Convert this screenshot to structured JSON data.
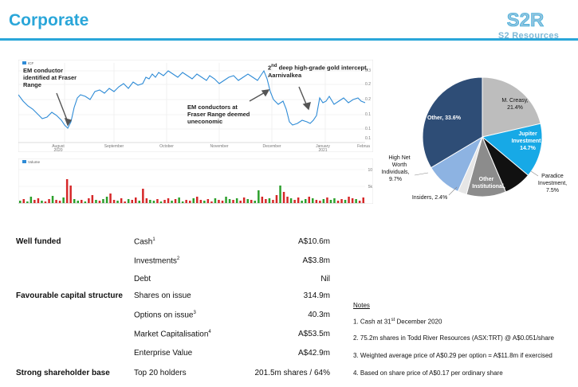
{
  "slide": {
    "title": "Corporate"
  },
  "logo": {
    "mark": "S2R",
    "text": "S2 Resources"
  },
  "price_chart": {
    "legend": "ICF",
    "x_labels": [
      "August\n2020",
      "September",
      "October",
      "November",
      "December",
      "January\n2021",
      "Februa"
    ],
    "y_labels": [
      "0.3",
      "0.2",
      "0.2",
      "0.1",
      "0.1",
      "0.1"
    ],
    "annotations": {
      "em_fraser": "EM conductor identified at Fraser Range",
      "aarnivalkea_sup": "nd",
      "aarnivalkea_pre": "2",
      "aarnivalkea": "deep high-grade gold intercept, Aarnivalkea",
      "em_uneconomic": "EM conductors at Fraser Range deemed uneconomic"
    }
  },
  "volume_chart": {
    "legend": "Volume",
    "y_labels": [
      "10",
      "5k"
    ]
  },
  "chart_data": {
    "type": "pie",
    "title": "",
    "slices": [
      {
        "label": "M. Creasy,",
        "value": 21.4,
        "color": "#bdbdbd",
        "text": "21.4%"
      },
      {
        "label": "Jupiter Investment ,",
        "value": 14.7,
        "color": "#17a9e6",
        "text": "14.7%"
      },
      {
        "label": "Paradice Investment,",
        "value": 7.5,
        "color": "#111111",
        "text": "7.5%"
      },
      {
        "label": "Other Institutional",
        "value": 10.7,
        "color": "#8c8c8c",
        "text": ""
      },
      {
        "label": "Insiders,",
        "value": 2.4,
        "color": "#e6e6e6",
        "text": "2.4%"
      },
      {
        "label": "High Net Worth Individuals,",
        "value": 9.7,
        "color": "#8db3e2",
        "text": "9.7%"
      },
      {
        "label": "Other,",
        "value": 33.6,
        "color": "#2e4d76",
        "text": "33.6%"
      }
    ]
  },
  "table": {
    "sections": [
      {
        "label": "Well funded"
      },
      {
        "label": "Favourable capital structure"
      },
      {
        "label": "Strong shareholder base"
      }
    ],
    "rows": [
      {
        "item": "Cash",
        "sup": "1",
        "value": "A$10.6m"
      },
      {
        "item": "Investments",
        "sup": "2",
        "value": "A$3.8m"
      },
      {
        "item": "Debt",
        "sup": "",
        "value": "Nil"
      },
      {
        "item": "Shares on issue",
        "sup": "",
        "value": "314.9m"
      },
      {
        "item": "Options on issue",
        "sup": "3",
        "value": "40.3m"
      },
      {
        "item": "Market Capitalisation",
        "sup": "4",
        "value": "A$53.5m"
      },
      {
        "item": "Enterprise Value",
        "sup": "",
        "value": "A$42.9m"
      },
      {
        "item": "Top 20 holders",
        "sup": "",
        "value": "201.5m shares / 64%"
      }
    ]
  },
  "notes": {
    "title": "Notes",
    "n1_pre": "1. Cash at 31",
    "n1_sup": "st",
    "n1_post": " December 2020",
    "n2": "2. 75.2m shares in Todd River Resources (ASX:TRT) @ A$0.051/share",
    "n3": "3. Weighted average price of A$0.29 per option = A$11.8m if exercised",
    "n4": "4. Based on share price of A$0.17 per ordinary share"
  }
}
